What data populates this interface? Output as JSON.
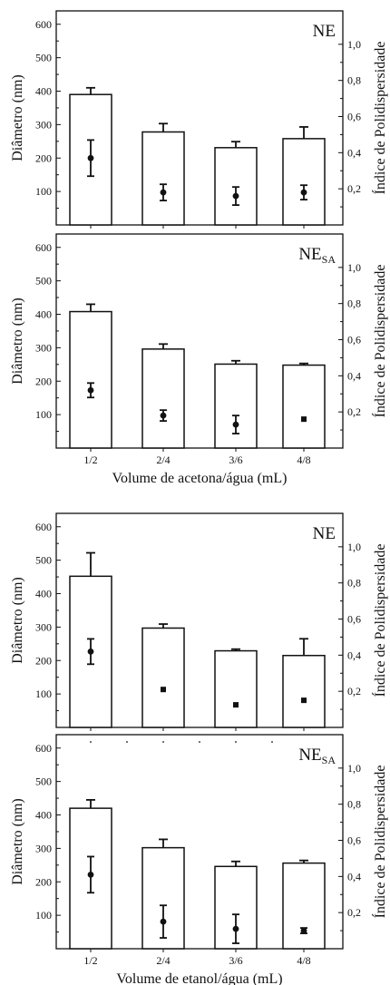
{
  "chart_data": [
    {
      "type": "bar",
      "title": "NE",
      "title_sub": "",
      "categories": [
        "1/2",
        "2/4",
        "3/6",
        "4/8"
      ],
      "series": [
        {
          "values": [
            390,
            278,
            231,
            258
          ],
          "errors": [
            20,
            25,
            18,
            35
          ]
        },
        {
          "values": [
            0.37,
            0.18,
            0.16,
            0.18
          ],
          "errors": [
            0.1,
            0.045,
            0.05,
            0.04
          ]
        }
      ],
      "ylabel": "Diâmetro (nm)",
      "y2label": "Índice de Polidispersidade",
      "xlabel": "",
      "ylim": [
        0,
        640
      ],
      "y2lim": [
        0,
        1.185
      ],
      "yticks": [
        "100",
        "200",
        "300",
        "400",
        "500",
        "600"
      ],
      "y2ticks": [
        "0,2",
        "0,4",
        "0,6",
        "0,8",
        "1,0"
      ],
      "show_xticklabels": false,
      "dotted_top": false
    },
    {
      "type": "bar",
      "title": "NE",
      "title_sub": "SA",
      "categories": [
        "1/2",
        "2/4",
        "3/6",
        "4/8"
      ],
      "series": [
        {
          "values": [
            408,
            296,
            251,
            248
          ],
          "errors": [
            22,
            15,
            10,
            5
          ]
        },
        {
          "values": [
            0.32,
            0.18,
            0.13,
            0.16
          ],
          "errors": [
            0.04,
            0.03,
            0.05,
            0.005
          ]
        }
      ],
      "ylabel": "Diâmetro (nm)",
      "y2label": "Índice de Polidispersidade",
      "xlabel": "Volume de acetona/água (mL)",
      "ylim": [
        0,
        640
      ],
      "y2lim": [
        0,
        1.185
      ],
      "yticks": [
        "100",
        "200",
        "300",
        "400",
        "500",
        "600"
      ],
      "y2ticks": [
        "0,2",
        "0,4",
        "0,6",
        "0,8",
        "1,0"
      ],
      "show_xticklabels": true,
      "dotted_top": false
    },
    {
      "type": "bar",
      "title": "NE",
      "title_sub": "",
      "categories": [
        "1/2",
        "2/4",
        "3/6",
        "4/8"
      ],
      "series": [
        {
          "values": [
            452,
            297,
            229,
            215
          ],
          "errors": [
            70,
            12,
            5,
            50
          ]
        },
        {
          "values": [
            0.42,
            0.21,
            0.125,
            0.15
          ],
          "errors": [
            0.07,
            0.005,
            0.005,
            0.005
          ]
        }
      ],
      "ylabel": "Diâmetro (nm)",
      "y2label": "Índice de Polidispersidade",
      "xlabel": "",
      "ylim": [
        0,
        640
      ],
      "y2lim": [
        0,
        1.185
      ],
      "yticks": [
        "100",
        "200",
        "300",
        "400",
        "500",
        "600"
      ],
      "y2ticks": [
        "0,2",
        "0,4",
        "0,6",
        "0,8",
        "1,0"
      ],
      "show_xticklabels": false,
      "dotted_top": false
    },
    {
      "type": "bar",
      "title": "NE",
      "title_sub": "SA",
      "categories": [
        "1/2",
        "2/4",
        "3/6",
        "4/8"
      ],
      "series": [
        {
          "values": [
            420,
            302,
            246,
            256
          ],
          "errors": [
            25,
            25,
            15,
            8
          ]
        },
        {
          "values": [
            0.41,
            0.15,
            0.11,
            0.1
          ],
          "errors": [
            0.1,
            0.09,
            0.08,
            0.015
          ]
        }
      ],
      "ylabel": "Diâmetro (nm)",
      "y2label": "Índice de Polidispersidade",
      "xlabel": "Volume de etanol/água (mL)",
      "ylim": [
        0,
        640
      ],
      "y2lim": [
        0,
        1.185
      ],
      "yticks": [
        "100",
        "200",
        "300",
        "400",
        "500",
        "600"
      ],
      "y2ticks": [
        "0,2",
        "0,4",
        "0,6",
        "0,8",
        "1,0"
      ],
      "show_xticklabels": true,
      "dotted_top": true
    }
  ]
}
